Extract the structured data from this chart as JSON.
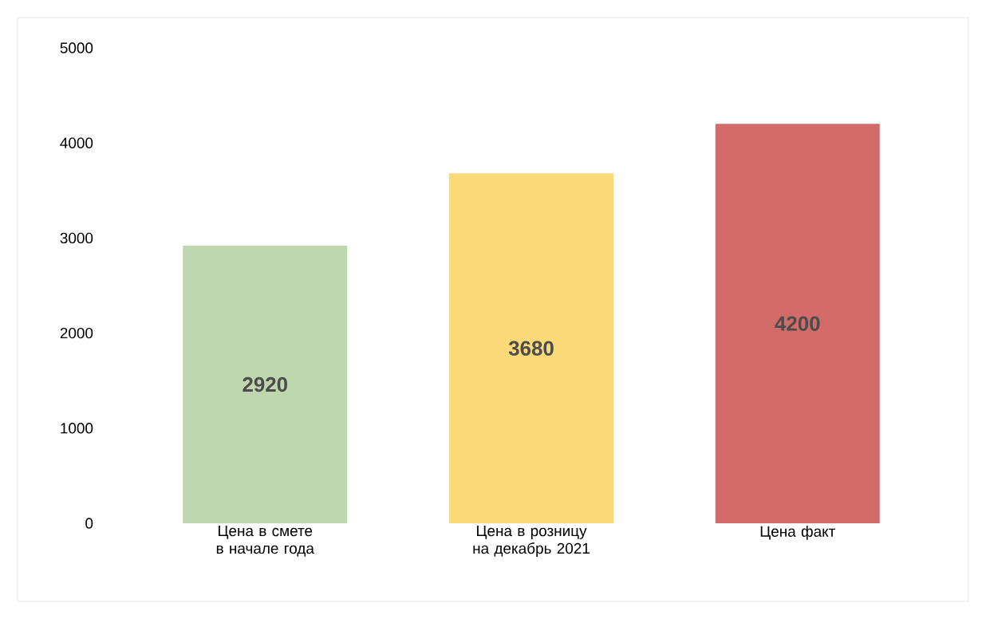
{
  "chart_data": {
    "type": "bar",
    "categories": [
      "Цена в смете в начале года",
      "Цена в розницу на декабрь 2021",
      "Цена факт"
    ],
    "values": [
      2920,
      3680,
      4200
    ],
    "colors": [
      "#bfd7ae",
      "#f9d978",
      "#d36b69"
    ],
    "ylim": [
      0,
      5000
    ],
    "yticks": [
      0,
      1000,
      2000,
      3000,
      4000,
      5000
    ],
    "data_labels": true,
    "grid": false
  }
}
